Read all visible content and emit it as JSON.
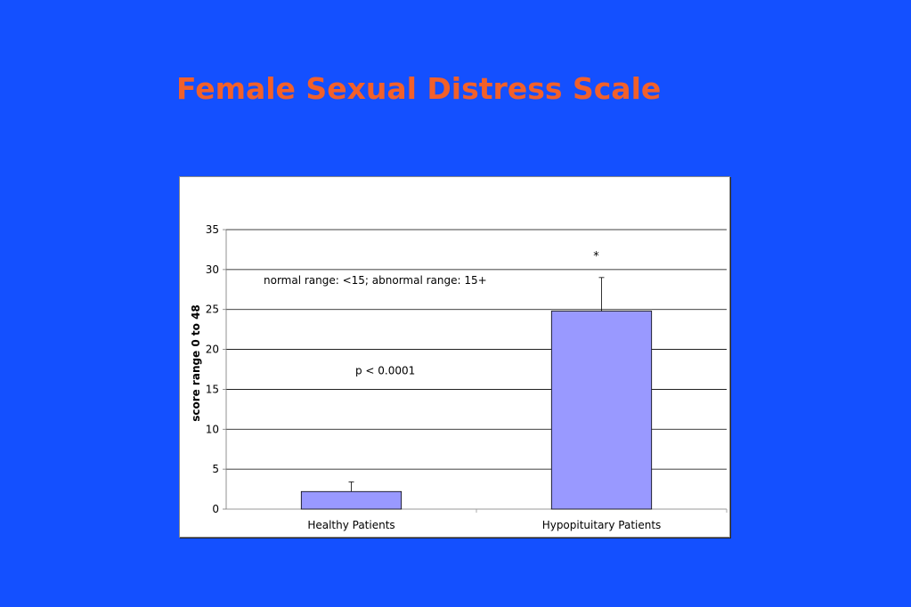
{
  "slide": {
    "title": "Female Sexual Distress Scale",
    "background_color": "#1450ff",
    "title_color": "#f2602a"
  },
  "chart_data": {
    "type": "bar",
    "categories": [
      "Healthy Patients",
      "Hypopituitary Patients"
    ],
    "series": [
      {
        "values": [
          2.2,
          24.8
        ],
        "error_plus": [
          1.2,
          4.2
        ],
        "color": "#9999ff"
      }
    ],
    "title": "",
    "xlabel": "",
    "ylabel": "score range 0 to 48",
    "ylim": [
      0,
      35
    ],
    "yticks": [
      0,
      5,
      10,
      15,
      20,
      25,
      30,
      35
    ],
    "grid": true,
    "annotations": [
      {
        "text": "normal range: <15; abnormal range: 15+"
      },
      {
        "text": "p < 0.0001"
      },
      {
        "text": "*"
      }
    ]
  }
}
